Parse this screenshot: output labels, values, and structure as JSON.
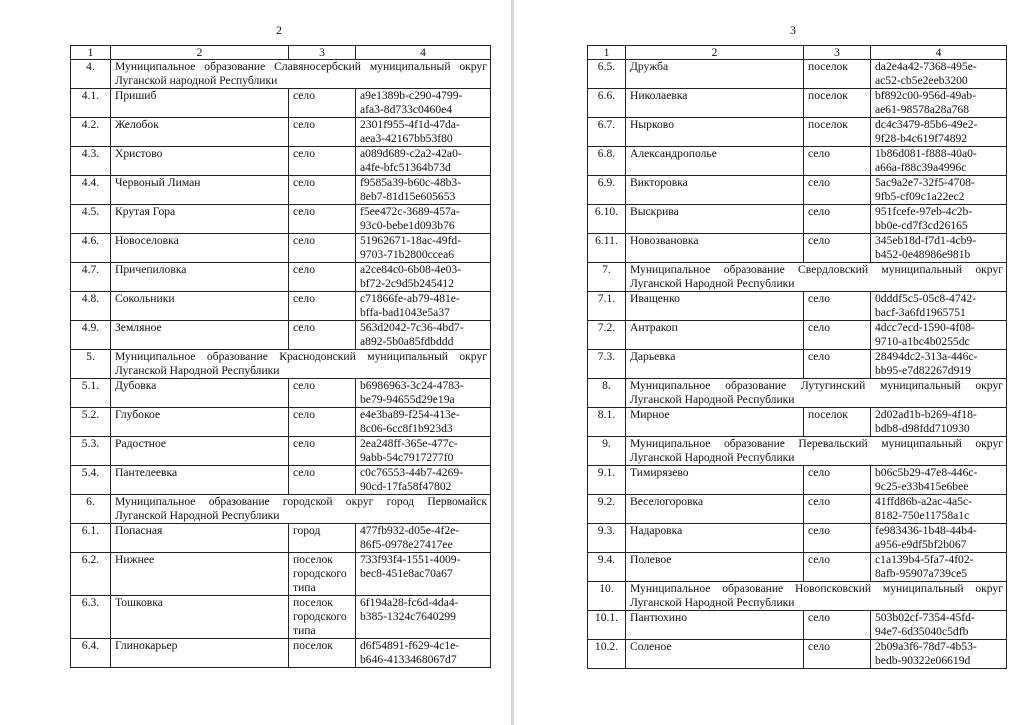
{
  "pages": [
    {
      "page_number": "2",
      "header": [
        "1",
        "2",
        "3",
        "4"
      ],
      "rows": [
        {
          "type": "section",
          "num": "4.",
          "text": "Муниципальное образование Славяносербский муниципальный округ Луганской народной Республики"
        },
        {
          "num": "4.1.",
          "name": "Пришиб",
          "kind": "село",
          "id": [
            "a9e1389b-c290-4799-",
            "afa3-8d733c0460e4"
          ]
        },
        {
          "num": "4.2.",
          "name": "Желобок",
          "kind": "село",
          "id": [
            "2301f955-4f1d-47da-",
            "aea3-42167bb53f80"
          ]
        },
        {
          "num": "4.3.",
          "name": "Христово",
          "kind": "село",
          "id": [
            "a089d689-c2a2-42a0-",
            "a4fe-bfc51364b73d"
          ]
        },
        {
          "num": "4.4.",
          "name": "Червоный Лиман",
          "kind": "село",
          "id": [
            "f9585a39-b60c-48b3-",
            "8eb7-81d15e605653"
          ]
        },
        {
          "num": "4.5.",
          "name": "Крутая Гора",
          "kind": "село",
          "id": [
            "f5ee472c-3689-457a-",
            "93c0-bebe1d093b76"
          ]
        },
        {
          "num": "4.6.",
          "name": "Новоселовка",
          "kind": "село",
          "id": [
            "51962671-18ac-49fd-",
            "9703-71b2800ccea6"
          ]
        },
        {
          "num": "4.7.",
          "name": "Причепиловка",
          "kind": "село",
          "id": [
            "a2ce84c0-6b08-4e03-",
            "bf72-2c9d5b245412"
          ]
        },
        {
          "num": "4.8.",
          "name": "Сокольники",
          "kind": "село",
          "id": [
            "c71866fe-ab79-481e-",
            "bffa-bad1043e5a37"
          ]
        },
        {
          "num": "4.9.",
          "name": "Земляное",
          "kind": "село",
          "id": [
            "563d2042-7c36-4bd7-",
            "a892-5b0a85fdbddd"
          ]
        },
        {
          "type": "section",
          "num": "5.",
          "text": "Муниципальное образование Краснодонский муниципальный округ Луганской Народной Республики"
        },
        {
          "num": "5.1.",
          "name": "Дубовка",
          "kind": "село",
          "id": [
            "b6986963-3c24-4783-",
            "be79-94655d29e19a"
          ]
        },
        {
          "num": "5.2.",
          "name": "Глубокое",
          "kind": "село",
          "id": [
            "e4e3ba89-f254-413e-",
            "8c06-6cc8f1b923d3"
          ]
        },
        {
          "num": "5.3.",
          "name": "Радостное",
          "kind": "село",
          "id": [
            "2ea248ff-365e-477c-",
            "9abb-54c7917277f0"
          ]
        },
        {
          "num": "5.4.",
          "name": "Пантелеевка",
          "kind": "село",
          "id": [
            "c0c76553-44b7-4269-",
            "90cd-17fa58f47802"
          ]
        },
        {
          "type": "section",
          "num": "6.",
          "text": "Муниципальное образование городской округ город Первомайск Луганской Народной Республики"
        },
        {
          "num": "6.1.",
          "name": "Попасная",
          "kind": "город",
          "id": [
            "477fb932-d05e-4f2e-",
            "86f5-0978e27417ee"
          ]
        },
        {
          "num": "6.2.",
          "name": "Нижнее",
          "kind": "поселок городского типа",
          "id": [
            "733f93f4-1551-4009-",
            "bec8-451e8ac70a67"
          ]
        },
        {
          "num": "6.3.",
          "name": "Тошковка",
          "kind": "поселок городского типа",
          "id": [
            "6f194a28-fc6d-4da4-",
            "b385-1324c7640299"
          ]
        },
        {
          "num": "6.4.",
          "name": "Глинокарьер",
          "kind": "поселок",
          "id": [
            "d6f54891-f629-4c1e-",
            "b646-4133468067d7"
          ]
        }
      ]
    },
    {
      "page_number": "3",
      "header": [
        "1",
        "2",
        "3",
        "4"
      ],
      "rows": [
        {
          "num": "6.5.",
          "name": "Дружба",
          "kind": "поселок",
          "id": [
            "da2e4a42-7368-495e-",
            "ac52-cb5e2eeb3200"
          ]
        },
        {
          "num": "6.6.",
          "name": "Николаевка",
          "kind": "поселок",
          "id": [
            "bf892c00-956d-49ab-",
            "ae61-98578a28a768"
          ]
        },
        {
          "num": "6.7.",
          "name": "Нырково",
          "kind": "поселок",
          "id": [
            "dc4c3479-85b6-49e2-",
            "9f28-b4c619f74892"
          ]
        },
        {
          "num": "6.8.",
          "name": "Александрополье",
          "kind": "село",
          "id": [
            "1b86d081-f888-40a0-",
            "a66a-f88c39a4996c"
          ]
        },
        {
          "num": "6.9.",
          "name": "Викторовка",
          "kind": "село",
          "id": [
            "5ac9a2e7-32f5-4708-",
            "9fb5-cf09c1a22ec2"
          ]
        },
        {
          "num": "6.10.",
          "name": "Выскрива",
          "kind": "село",
          "id": [
            "951fcefe-97eb-4c2b-",
            "bb0e-cd7f3cd26165"
          ]
        },
        {
          "num": "6.11.",
          "name": "Новозвановка",
          "kind": "село",
          "id": [
            "345eb18d-f7d1-4cb9-",
            "b452-0e48986e981b"
          ]
        },
        {
          "type": "section",
          "num": "7.",
          "text": "Муниципальное образование Свердловский муниципальный округ Луганской Народной Республики"
        },
        {
          "num": "7.1.",
          "name": "Иващенко",
          "kind": "село",
          "id": [
            "0dddf5c5-05c8-4742-",
            "bacf-3a6fd1965751"
          ]
        },
        {
          "num": "7.2.",
          "name": "Антракоп",
          "kind": "село",
          "id": [
            "4dcc7ecd-1590-4f08-",
            "9710-a1bc4b0255dc"
          ]
        },
        {
          "num": "7.3.",
          "name": "Дарьевка",
          "kind": "село",
          "id": [
            "28494dc2-313a-446c-",
            "bb95-e7d82267d919"
          ]
        },
        {
          "type": "section",
          "num": "8.",
          "text": "Муниципальное образование Лутугинский муниципальный округ Луганской Народной Республики"
        },
        {
          "num": "8.1.",
          "name": "Мирное",
          "kind": "поселок",
          "id": [
            "2d02ad1b-b269-4f18-",
            "bdb8-d98fdd710930"
          ]
        },
        {
          "type": "section",
          "num": "9.",
          "text": "Муниципальное образование Перевальский муниципальный округ Луганской Народной Республики"
        },
        {
          "num": "9.1.",
          "name": "Тимирязево",
          "kind": "село",
          "id": [
            "b06c5b29-47e8-446c-",
            "9c25-e33b415e6bee"
          ]
        },
        {
          "num": "9.2.",
          "name": "Веселогоровка",
          "kind": "село",
          "id": [
            "41ffd86b-a2ac-4a5c-",
            "8182-750e11758a1c"
          ]
        },
        {
          "num": "9.3.",
          "name": "Надаровка",
          "kind": "село",
          "id": [
            "fe983436-1b48-44b4-",
            "a956-e9df5bf2b067"
          ]
        },
        {
          "num": "9.4.",
          "name": "Полевое",
          "kind": "село",
          "id": [
            "c1a139b4-5fa7-4f02-",
            "8afb-95907a739ce5"
          ]
        },
        {
          "type": "section",
          "num": "10.",
          "text": "Муниципальное образование Новопсковский муниципальный округ Луганской Народной Республики"
        },
        {
          "num": "10.1.",
          "name": "Пантюхино",
          "kind": "село",
          "id": [
            "503b02cf-7354-45fd-",
            "94e7-6d35040c5dfb"
          ]
        },
        {
          "num": "10.2.",
          "name": "Соленое",
          "kind": "село",
          "id": [
            "2b09a3f6-78d7-4b53-",
            "bedb-90322e06619d"
          ]
        }
      ]
    }
  ]
}
